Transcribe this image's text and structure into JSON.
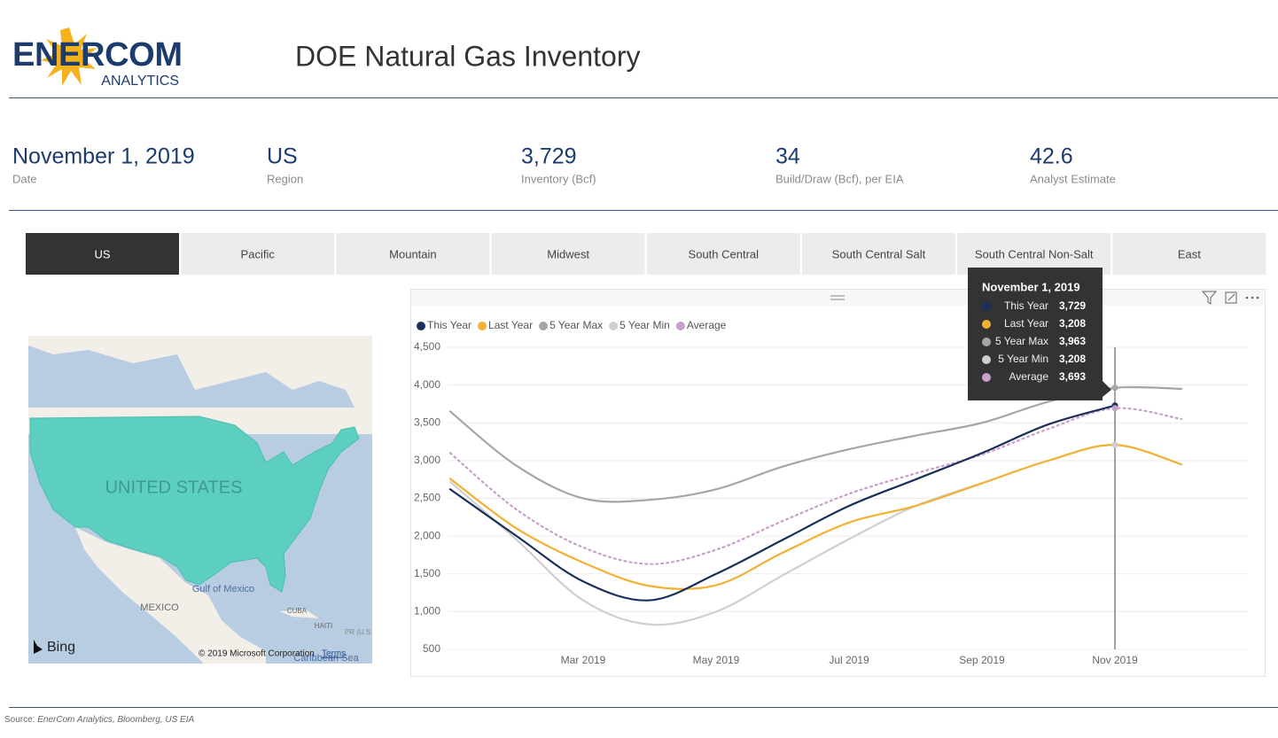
{
  "header": {
    "logo": "ENERCOM",
    "logo_sub": "ANALYTICS",
    "title": "DOE Natural Gas Inventory"
  },
  "kpis": [
    {
      "value": "November 1, 2019",
      "label": "Date"
    },
    {
      "value": "US",
      "label": "Region"
    },
    {
      "value": "3,729",
      "label": "Inventory (Bcf)"
    },
    {
      "value": "34",
      "label": "Build/Draw (Bcf), per EIA"
    },
    {
      "value": "42.6",
      "label": "Analyst Estimate"
    }
  ],
  "tabs": [
    "US",
    "Pacific",
    "Mountain",
    "Midwest",
    "South Central",
    "South Central Salt",
    "South Central Non-Salt",
    "East"
  ],
  "map": {
    "country": "UNITED STATES",
    "gulf": "Gulf of Mexico",
    "mexico": "MEXICO",
    "cuba": "CUBA",
    "haiti": "HAITI",
    "pr": "PR (U.S.)",
    "sea": "Caribbean Sea",
    "brand": "Bing",
    "copyright": "© 2019 Microsoft Corporation",
    "terms": "Terms"
  },
  "chart_data": {
    "type": "line",
    "x": [
      "Jan 2019",
      "Feb 2019",
      "Mar 2019",
      "Apr 2019",
      "May 2019",
      "Jun 2019",
      "Jul 2019",
      "Aug 2019",
      "Sep 2019",
      "Oct 2019",
      "Nov 2019",
      "Dec 2019"
    ],
    "xticks": [
      "Mar 2019",
      "May 2019",
      "Jul 2019",
      "Sep 2019",
      "Nov 2019"
    ],
    "series": [
      {
        "name": "This Year",
        "color": "#1a2f5a",
        "values": [
          2620,
          2000,
          1400,
          1150,
          1500,
          1950,
          2400,
          2750,
          3100,
          3480,
          3729,
          null
        ]
      },
      {
        "name": "Last Year",
        "color": "#f2b134",
        "values": [
          2760,
          2100,
          1650,
          1340,
          1350,
          1780,
          2180,
          2400,
          2700,
          3000,
          3208,
          2950
        ]
      },
      {
        "name": "5 Year Max",
        "color": "#a6a6a6",
        "values": [
          3650,
          2930,
          2500,
          2480,
          2620,
          2920,
          3150,
          3330,
          3500,
          3780,
          3963,
          3950
        ]
      },
      {
        "name": "5 Year Min",
        "color": "#cfcfcf",
        "values": [
          2720,
          1950,
          1150,
          830,
          1000,
          1480,
          1960,
          2400,
          2700,
          3000,
          3208,
          2950
        ]
      },
      {
        "name": "Average",
        "color": "#c89fc8",
        "style": "dotted",
        "values": [
          3100,
          2350,
          1850,
          1630,
          1820,
          2200,
          2560,
          2830,
          3080,
          3420,
          3693,
          3550
        ]
      }
    ],
    "ylim": [
      500,
      4500
    ],
    "yticks": [
      500,
      {
        "value": 1000,
        "label": "1,000"
      },
      {
        "value": 1500,
        "label": "1,500"
      },
      {
        "value": 2000,
        "label": "2,000"
      },
      {
        "value": 2500,
        "label": "2,500"
      },
      {
        "value": 3000,
        "label": "3,000"
      },
      {
        "value": 3500,
        "label": "3,500"
      },
      {
        "value": 4000,
        "label": "4,000"
      },
      {
        "value": 4500,
        "label": "4,500"
      }
    ],
    "grid": true,
    "legend": "top-left",
    "tooltip": {
      "title": "November 1, 2019",
      "values": [
        {
          "value": 3729,
          "label": "3,729"
        },
        {
          "value": 3208,
          "label": "3,208"
        },
        {
          "value": 3963,
          "label": "3,963"
        },
        {
          "value": 3208,
          "label": "3,208"
        },
        {
          "value": 3693,
          "label": "3,693"
        }
      ]
    }
  },
  "source": {
    "prefix": "Source:",
    "text": "EnerCom Analytics, Bloomberg, US EIA"
  }
}
